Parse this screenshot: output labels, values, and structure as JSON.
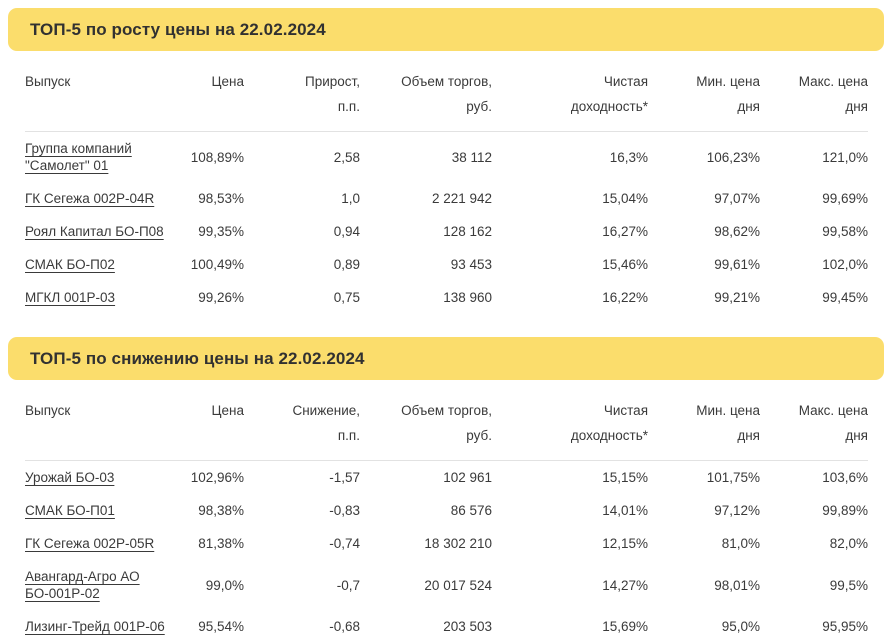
{
  "report_date": "22.02.2024",
  "colors": {
    "banner": "#FBDD6C",
    "title_text": "#313131",
    "body_text": "#3A3A3A",
    "separator": "#E2E2E2"
  },
  "sections": [
    {
      "title": "ТОП-5 по росту цены на 22.02.2024",
      "columns": [
        "Выпуск",
        "Цена",
        "Прирост,\nп.п.",
        "Объем торгов,\nруб.",
        "Чистая\nдоходность*",
        "Мин. цена\nдня",
        "Макс. цена\nдня"
      ],
      "rows": [
        {
          "issue": "Группа компаний\n\"Самолет\" 01",
          "values": [
            "108,89%",
            "2,58",
            "38 112",
            "16,3%",
            "106,23%",
            "121,0%"
          ]
        },
        {
          "issue": "ГК Сегежа 002P-04R",
          "values": [
            "98,53%",
            "1,0",
            "2 221 942",
            "15,04%",
            "97,07%",
            "99,69%"
          ]
        },
        {
          "issue": "Роял Капитал БО-П08",
          "values": [
            "99,35%",
            "0,94",
            "128 162",
            "16,27%",
            "98,62%",
            "99,58%"
          ]
        },
        {
          "issue": "СМАК БО-П02",
          "values": [
            "100,49%",
            "0,89",
            "93 453",
            "15,46%",
            "99,61%",
            "102,0%"
          ]
        },
        {
          "issue": "МГКЛ 001P-03",
          "values": [
            "99,26%",
            "0,75",
            "138 960",
            "16,22%",
            "99,21%",
            "99,45%"
          ]
        }
      ]
    },
    {
      "title": "ТОП-5 по снижению цены на 22.02.2024",
      "columns": [
        "Выпуск",
        "Цена",
        "Снижение,\nп.п.",
        "Объем торгов,\nруб.",
        "Чистая\nдоходность*",
        "Мин. цена\nдня",
        "Макс. цена\nдня"
      ],
      "rows": [
        {
          "issue": "Урожай БО-03",
          "values": [
            "102,96%",
            "-1,57",
            "102 961",
            "15,15%",
            "101,75%",
            "103,6%"
          ]
        },
        {
          "issue": "СМАК БО-П01",
          "values": [
            "98,38%",
            "-0,83",
            "86 576",
            "14,01%",
            "97,12%",
            "99,89%"
          ]
        },
        {
          "issue": "ГК Сегежа 002P-05R",
          "values": [
            "81,38%",
            "-0,74",
            "18 302 210",
            "12,15%",
            "81,0%",
            "82,0%"
          ]
        },
        {
          "issue": "Авангард-Агро АО\nБО-001P-02",
          "values": [
            "99,0%",
            "-0,7",
            "20 017 524",
            "14,27%",
            "98,01%",
            "99,5%"
          ]
        },
        {
          "issue": "Лизинг-Трейд 001P-06",
          "values": [
            "95,54%",
            "-0,68",
            "203 503",
            "15,69%",
            "95,0%",
            "95,95%"
          ]
        }
      ]
    }
  ]
}
